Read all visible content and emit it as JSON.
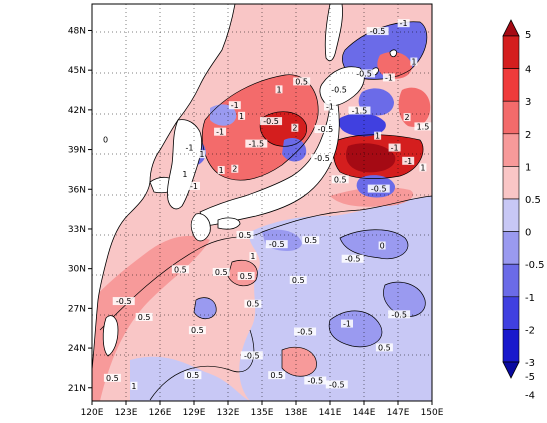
{
  "map": {
    "lon_ticks": [
      "120E",
      "123E",
      "126E",
      "129E",
      "132E",
      "135E",
      "138E",
      "141E",
      "144E",
      "147E",
      "150E"
    ],
    "lat_ticks": [
      "48N",
      "45N",
      "42N",
      "39N",
      "36N",
      "33N",
      "30N",
      "27N",
      "24N",
      "21N"
    ],
    "lon_range": [
      120,
      150
    ],
    "lat_range": [
      20,
      50
    ],
    "grid": "dotted",
    "contour_labels": [
      {
        "text": "-1",
        "lon": 147.5,
        "lat": 48.4
      },
      {
        "text": "-0.5",
        "lon": 145.2,
        "lat": 47.8
      },
      {
        "text": "-0.5",
        "lon": 144.0,
        "lat": 44.6
      },
      {
        "text": "-1",
        "lon": 146.2,
        "lat": 44.3
      },
      {
        "text": "1",
        "lon": 148.4,
        "lat": 45.5
      },
      {
        "text": "-0.5",
        "lon": 141.8,
        "lat": 43.4
      },
      {
        "text": "-1",
        "lon": 141.0,
        "lat": 42.1
      },
      {
        "text": "-1.5",
        "lon": 143.6,
        "lat": 41.8
      },
      {
        "text": "0.5",
        "lon": 138.5,
        "lat": 44.0
      },
      {
        "text": "-0.5",
        "lon": 135.8,
        "lat": 41.0
      },
      {
        "text": "1",
        "lon": 136.5,
        "lat": 43.4
      },
      {
        "text": "-1",
        "lon": 132.6,
        "lat": 42.2
      },
      {
        "text": "2",
        "lon": 137.9,
        "lat": 40.5
      },
      {
        "text": "-1",
        "lon": 131.3,
        "lat": 40.2
      },
      {
        "text": "1",
        "lon": 133.2,
        "lat": 41.4
      },
      {
        "text": "-1.5",
        "lon": 134.5,
        "lat": 39.3
      },
      {
        "text": "-0.5",
        "lon": 140.6,
        "lat": 40.4
      },
      {
        "text": "-0.5",
        "lon": 140.3,
        "lat": 38.2
      },
      {
        "text": "2",
        "lon": 147.8,
        "lat": 41.3
      },
      {
        "text": "1.5",
        "lon": 149.2,
        "lat": 40.6
      },
      {
        "text": "1",
        "lon": 145.2,
        "lat": 39.9
      },
      {
        "text": "-1",
        "lon": 146.7,
        "lat": 39.0
      },
      {
        "text": "-1",
        "lon": 147.9,
        "lat": 38.0
      },
      {
        "text": "1",
        "lon": 149.2,
        "lat": 37.5
      },
      {
        "text": "-0.5",
        "lon": 145.3,
        "lat": 35.9
      },
      {
        "text": "0.5",
        "lon": 141.9,
        "lat": 36.6
      },
      {
        "text": "-1",
        "lon": 128.6,
        "lat": 39.0
      },
      {
        "text": "1",
        "lon": 129.7,
        "lat": 38.5
      },
      {
        "text": "1",
        "lon": 128.2,
        "lat": 37.0
      },
      {
        "text": "-1",
        "lon": 129.0,
        "lat": 36.1
      },
      {
        "text": "1",
        "lon": 131.4,
        "lat": 37.3
      },
      {
        "text": "2",
        "lon": 132.6,
        "lat": 37.4
      },
      {
        "text": "0",
        "lon": 121.2,
        "lat": 39.6
      },
      {
        "text": "0.5",
        "lon": 133.5,
        "lat": 32.4
      },
      {
        "text": "0.5",
        "lon": 139.3,
        "lat": 32.0
      },
      {
        "text": "-0.5",
        "lon": 136.3,
        "lat": 31.7
      },
      {
        "text": "1",
        "lon": 134.2,
        "lat": 30.8
      },
      {
        "text": "-0.5",
        "lon": 143.0,
        "lat": 30.6
      },
      {
        "text": "0",
        "lon": 145.6,
        "lat": 31.6
      },
      {
        "text": "0.5",
        "lon": 127.8,
        "lat": 29.8
      },
      {
        "text": "0.5",
        "lon": 131.4,
        "lat": 29.6
      },
      {
        "text": "0.5",
        "lon": 133.6,
        "lat": 29.3
      },
      {
        "text": "0.5",
        "lon": 138.2,
        "lat": 29.0
      },
      {
        "text": "-0.5",
        "lon": 122.8,
        "lat": 27.4
      },
      {
        "text": "0.5",
        "lon": 124.6,
        "lat": 26.2
      },
      {
        "text": "0.5",
        "lon": 134.2,
        "lat": 27.2
      },
      {
        "text": "-0.5",
        "lon": 147.1,
        "lat": 26.4
      },
      {
        "text": "-1",
        "lon": 142.5,
        "lat": 25.7
      },
      {
        "text": "-0.5",
        "lon": 138.8,
        "lat": 25.1
      },
      {
        "text": "0.5",
        "lon": 129.3,
        "lat": 25.2
      },
      {
        "text": "0.5",
        "lon": 128.9,
        "lat": 21.8
      },
      {
        "text": "-0.5",
        "lon": 134.1,
        "lat": 23.3
      },
      {
        "text": "0.5",
        "lon": 145.8,
        "lat": 23.9
      },
      {
        "text": "0.5",
        "lon": 136.3,
        "lat": 21.8
      },
      {
        "text": "-0.5",
        "lon": 139.7,
        "lat": 21.4
      },
      {
        "text": "-0.5",
        "lon": 141.6,
        "lat": 21.1
      },
      {
        "text": "0.5",
        "lon": 121.8,
        "lat": 21.6
      },
      {
        "text": "1",
        "lon": 123.7,
        "lat": 21.0
      }
    ]
  },
  "colorbar": {
    "labels": [
      "5",
      "4",
      "3",
      "2",
      "1",
      "0.5",
      "0",
      "-0.5",
      "-1",
      "-2",
      "-3",
      "-4",
      "-5"
    ],
    "colors": [
      "#a50a14",
      "#d41e1e",
      "#ef3b3b",
      "#f36b6b",
      "#f79a9a",
      "#f9c6c6",
      "#c8c8f5",
      "#9a9af0",
      "#6b6be8",
      "#4040e0",
      "#1818cc",
      "#0a0aa0"
    ]
  }
}
